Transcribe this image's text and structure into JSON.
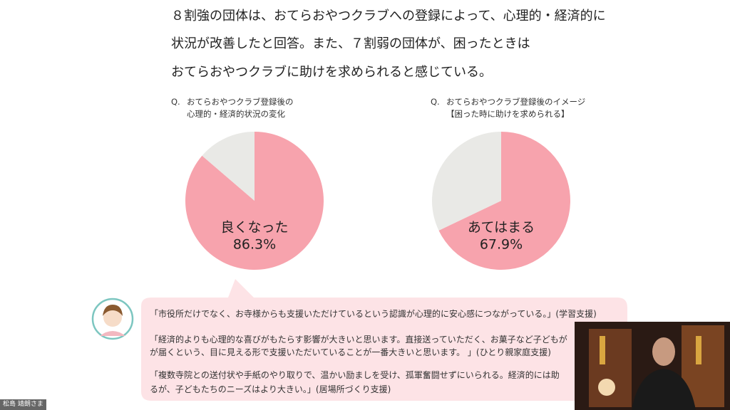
{
  "heading": [
    "８割強の団体は、おてらおやつクラブへの登録によって、心理的・経済的に",
    "状況が改善したと回答。また、７割弱の団体が、困ったときは",
    "おてらおやつクラブに助けを求められると感じている。"
  ],
  "chart_data": [
    {
      "type": "pie",
      "question_mark": "Q.",
      "title": [
        "おてらおやつクラブ登録後の",
        "心理的・経済的状況の変化"
      ],
      "categories": [
        "良くなった",
        null
      ],
      "values": [
        86.3,
        13.7
      ],
      "value_labels": [
        "86.3%",
        null
      ],
      "colors": [
        "#f7a3ad",
        "#e9e9e6"
      ]
    },
    {
      "type": "pie",
      "question_mark": "Q.",
      "title": [
        "おてらおやつクラブ登録後のイメージ",
        "【困った時に助けを求められる】"
      ],
      "categories": [
        "あてはまる",
        null
      ],
      "values": [
        67.9,
        32.1
      ],
      "value_labels": [
        "67.9%",
        null
      ],
      "colors": [
        "#f7a3ad",
        "#e9e9e6"
      ]
    }
  ],
  "comments": [
    [
      "「市役所だけでなく、お寺様からも支援いただけているという認識が心理的に安心感につながっている。」(学習支援)"
    ],
    [
      "「経済的よりも心理的な喜びがもたらす影響が大きいと思います。直接送っていただく、お菓子など子どもが",
      "が届くという、目に見える形で支援いただいていることが一番大きいと思います。 」(ひとり親家庭支援)"
    ],
    [
      "「複数寺院との送付状や手紙のやり取りで、温かい励ましを受け、孤軍奮闘せずにいられる。経済的には助",
      "るが、子どもたちのニーズはより大きい。」(居場所づくり支援)"
    ]
  ],
  "participant_name": "松島 靖朗さま"
}
